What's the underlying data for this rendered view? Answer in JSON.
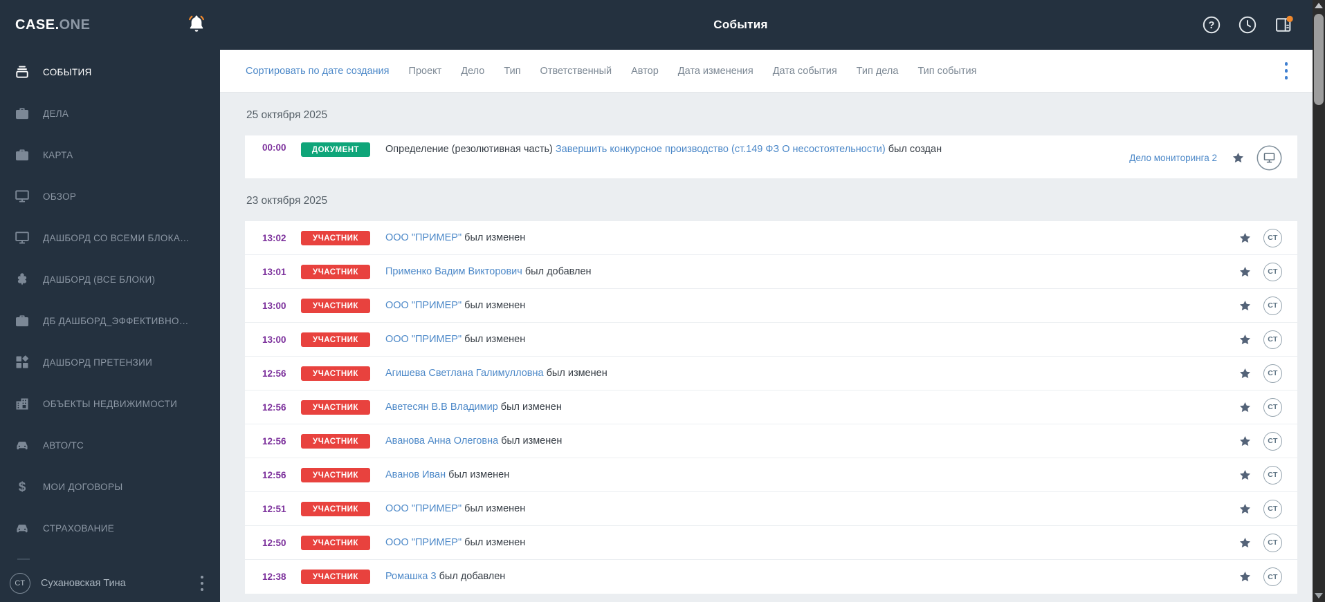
{
  "app": {
    "brand_primary": "CASE.",
    "brand_secondary": "ONE"
  },
  "header": {
    "title": "События"
  },
  "sidebar": {
    "items": [
      {
        "id": "events",
        "label": "СОБЫТИЯ",
        "icon": "events",
        "active": true
      },
      {
        "id": "cases",
        "label": "ДЕЛА",
        "icon": "briefcase",
        "active": false
      },
      {
        "id": "map",
        "label": "КАРТА",
        "icon": "briefcase",
        "active": false
      },
      {
        "id": "overview",
        "label": "ОБЗОР",
        "icon": "monitor",
        "active": false
      },
      {
        "id": "dashboard-all-blocks-1",
        "label": "ДАШБОРД СО ВСЕМИ БЛОКА…",
        "icon": "monitor",
        "active": false
      },
      {
        "id": "dashboard-all-blocks-2",
        "label": "ДАШБОРД (ВСЕ БЛОКИ)",
        "icon": "flower",
        "active": false
      },
      {
        "id": "db-dashboard-efficiency",
        "label": "ДБ ДАШБОРД_ЭФФЕКТИВНО…",
        "icon": "briefcase",
        "active": false
      },
      {
        "id": "dashboard-claims",
        "label": "ДАШБОРД ПРЕТЕНЗИИ",
        "icon": "dashboard",
        "active": false
      },
      {
        "id": "real-estate",
        "label": "ОБЪЕКТЫ НЕДВИЖИМОСТИ",
        "icon": "building",
        "active": false
      },
      {
        "id": "auto",
        "label": "АВТО/ТС",
        "icon": "car",
        "active": false
      },
      {
        "id": "my-contracts",
        "label": "МОИ ДОГОВОРЫ",
        "icon": "dollar",
        "active": false
      },
      {
        "id": "insurance",
        "label": "СТРАХОВАНИЕ",
        "icon": "car",
        "active": false
      }
    ],
    "user": {
      "initials": "СТ",
      "name": "Сухановская Тина"
    }
  },
  "filterbar": {
    "sort_label": "Сортировать по дате создания",
    "filters": [
      "Проект",
      "Дело",
      "Тип",
      "Ответственный",
      "Автор",
      "Дата изменения",
      "Дата события",
      "Тип дела",
      "Тип события"
    ]
  },
  "author_initials": "СТ",
  "groups": [
    {
      "date": "25 октября 2025",
      "events": [
        {
          "time": "00:00",
          "badge": "ДОКУМЕНТ",
          "badge_type": "document",
          "text_before": "Определение (резолютивная часть) ",
          "link": "Завершить конкурсное производство (ст.149 ФЗ О несостоятельности)",
          "text_after": " был создан",
          "case_link": "Дело мониторинга 2",
          "right": "monitor",
          "multiline": true
        }
      ]
    },
    {
      "date": "23 октября 2025",
      "events": [
        {
          "time": "13:02",
          "badge": "УЧАСТНИК",
          "badge_type": "participant",
          "link": "ООО \"ПРИМЕР\"",
          "text_after": " был изменен",
          "right": "avatar"
        },
        {
          "time": "13:01",
          "badge": "УЧАСТНИК",
          "badge_type": "participant",
          "link": "Применко Вадим Викторович",
          "text_after": " был добавлен",
          "right": "avatar"
        },
        {
          "time": "13:00",
          "badge": "УЧАСТНИК",
          "badge_type": "participant",
          "link": "ООО \"ПРИМЕР\"",
          "text_after": " был изменен",
          "right": "avatar"
        },
        {
          "time": "13:00",
          "badge": "УЧАСТНИК",
          "badge_type": "participant",
          "link": "ООО \"ПРИМЕР\"",
          "text_after": " был изменен",
          "right": "avatar"
        },
        {
          "time": "12:56",
          "badge": "УЧАСТНИК",
          "badge_type": "participant",
          "link": "Агишева Светлана Галимулловна",
          "text_after": " был изменен",
          "right": "avatar"
        },
        {
          "time": "12:56",
          "badge": "УЧАСТНИК",
          "badge_type": "participant",
          "link": "Аветесян В.В Владимир",
          "text_after": " был изменен",
          "right": "avatar"
        },
        {
          "time": "12:56",
          "badge": "УЧАСТНИК",
          "badge_type": "participant",
          "link": "Аванова Анна Олеговна",
          "text_after": " был изменен",
          "right": "avatar"
        },
        {
          "time": "12:56",
          "badge": "УЧАСТНИК",
          "badge_type": "participant",
          "link": "Аванов Иван",
          "text_after": " был изменен",
          "right": "avatar"
        },
        {
          "time": "12:51",
          "badge": "УЧАСТНИК",
          "badge_type": "participant",
          "link": "ООО \"ПРИМЕР\"",
          "text_after": " был изменен",
          "right": "avatar"
        },
        {
          "time": "12:50",
          "badge": "УЧАСТНИК",
          "badge_type": "participant",
          "link": "ООО \"ПРИМЕР\"",
          "text_after": " был изменен",
          "right": "avatar"
        },
        {
          "time": "12:38",
          "badge": "УЧАСТНИК",
          "badge_type": "participant",
          "link": "Ромашка 3",
          "text_after": " был добавлен",
          "right": "avatar"
        }
      ]
    }
  ],
  "fab": {
    "label": "+"
  },
  "colors": {
    "badge_document": "#0fa579",
    "badge_participant": "#e8423e",
    "accent_purple": "#7a3cab",
    "link_blue": "#4c88c8",
    "time_purple": "#7b2f9b",
    "sidebar_bg": "#24313f",
    "notification_orange": "#f0882c"
  }
}
